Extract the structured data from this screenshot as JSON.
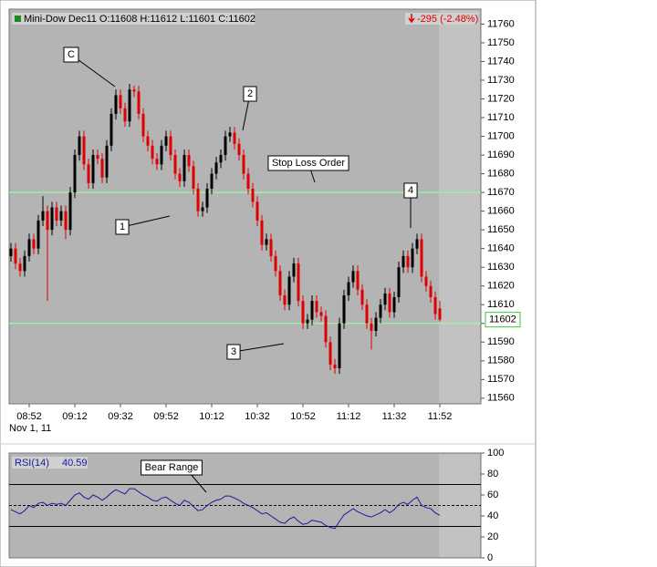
{
  "chart_data": [
    {
      "type": "candlestick",
      "legend": "Mini-Dow Dec11 O:11608 H:11612 L:11601 C:11602",
      "change": "-295 (-2.48%)",
      "date": "Nov 1, 11",
      "categories": [
        null,
        null,
        null,
        null,
        "08:52",
        null,
        null,
        null,
        null,
        null,
        null,
        null,
        null,
        null,
        "09:12",
        null,
        null,
        null,
        null,
        null,
        null,
        null,
        null,
        null,
        "09:32",
        null,
        null,
        null,
        null,
        null,
        null,
        null,
        null,
        null,
        "09:52",
        null,
        null,
        null,
        null,
        null,
        null,
        null,
        null,
        null,
        "10:12",
        null,
        null,
        null,
        null,
        null,
        null,
        null,
        null,
        null,
        "10:32",
        null,
        null,
        null,
        null,
        null,
        null,
        null,
        null,
        null,
        "10:52",
        null,
        null,
        null,
        null,
        null,
        null,
        null,
        null,
        null,
        "11:12",
        null,
        null,
        null,
        null,
        null,
        null,
        null,
        null,
        null,
        "11:32",
        null,
        null,
        null,
        null,
        null,
        null,
        null,
        null,
        null,
        "11:52"
      ],
      "open": [
        11636,
        11640,
        11632,
        11628,
        11636,
        11645,
        11640,
        11655,
        11660,
        11650,
        11662,
        11655,
        11660,
        11650,
        11670,
        11690,
        11700,
        11685,
        11675,
        11690,
        11688,
        11678,
        11695,
        11712,
        11722,
        11715,
        11708,
        11725,
        11724,
        11712,
        11700,
        11695,
        11688,
        11685,
        11695,
        11700,
        11690,
        11680,
        11676,
        11690,
        11684,
        11672,
        11660,
        11662,
        11672,
        11680,
        11686,
        11690,
        11700,
        11702,
        11696,
        11690,
        11680,
        11672,
        11665,
        11655,
        11642,
        11645,
        11636,
        11628,
        11615,
        11610,
        11625,
        11632,
        11612,
        11600,
        11602,
        11612,
        11606,
        11604,
        11590,
        11578,
        11576,
        11600,
        11615,
        11622,
        11628,
        11618,
        11610,
        11600,
        11596,
        11603,
        11610,
        11616,
        11606,
        11614,
        11630,
        11636,
        11630,
        11640,
        11645,
        11625,
        11620,
        11614,
        11608
      ],
      "high": [
        11643,
        11643,
        11635,
        11639,
        11648,
        11648,
        11658,
        11668,
        11663,
        11665,
        11665,
        11663,
        11663,
        11673,
        11693,
        11703,
        11703,
        11688,
        11693,
        11693,
        11691,
        11698,
        11715,
        11725,
        11725,
        11718,
        11728,
        11727,
        11727,
        11715,
        11703,
        11698,
        11691,
        11698,
        11703,
        11703,
        11693,
        11683,
        11693,
        11693,
        11687,
        11675,
        11665,
        11675,
        11683,
        11689,
        11693,
        11703,
        11705,
        11705,
        11699,
        11693,
        11683,
        11675,
        11668,
        11658,
        11648,
        11648,
        11639,
        11631,
        11618,
        11628,
        11635,
        11635,
        11615,
        11605,
        11615,
        11615,
        11609,
        11607,
        11593,
        11581,
        11603,
        11618,
        11625,
        11631,
        11631,
        11621,
        11613,
        11603,
        11606,
        11613,
        11619,
        11619,
        11617,
        11633,
        11639,
        11639,
        11643,
        11648,
        11648,
        11628,
        11623,
        11617,
        11612
      ],
      "low": [
        11633,
        11629,
        11625,
        11625,
        11633,
        11637,
        11637,
        11652,
        11612,
        11647,
        11652,
        11652,
        11645,
        11647,
        11667,
        11687,
        11682,
        11672,
        11672,
        11685,
        11675,
        11675,
        11692,
        11709,
        11712,
        11705,
        11705,
        11721,
        11709,
        11697,
        11692,
        11685,
        11682,
        11682,
        11692,
        11687,
        11677,
        11673,
        11673,
        11681,
        11669,
        11657,
        11657,
        11659,
        11669,
        11677,
        11683,
        11687,
        11697,
        11693,
        11687,
        11677,
        11669,
        11662,
        11652,
        11639,
        11639,
        11633,
        11625,
        11612,
        11607,
        11607,
        11622,
        11609,
        11597,
        11597,
        11599,
        11603,
        11601,
        11587,
        11575,
        11573,
        11573,
        11597,
        11612,
        11619,
        11615,
        11607,
        11597,
        11586,
        11593,
        11600,
        11607,
        11603,
        11603,
        11611,
        11627,
        11627,
        11627,
        11637,
        11622,
        11617,
        11611,
        11602,
        11601
      ],
      "close": [
        11640,
        11632,
        11628,
        11636,
        11645,
        11640,
        11655,
        11660,
        11650,
        11662,
        11655,
        11660,
        11650,
        11670,
        11690,
        11700,
        11685,
        11675,
        11690,
        11688,
        11678,
        11695,
        11712,
        11722,
        11715,
        11708,
        11725,
        11724,
        11712,
        11700,
        11695,
        11688,
        11685,
        11695,
        11700,
        11690,
        11680,
        11676,
        11690,
        11684,
        11672,
        11660,
        11662,
        11672,
        11680,
        11686,
        11690,
        11700,
        11702,
        11696,
        11690,
        11680,
        11672,
        11665,
        11655,
        11642,
        11645,
        11636,
        11628,
        11615,
        11610,
        11625,
        11632,
        11612,
        11600,
        11602,
        11612,
        11606,
        11604,
        11590,
        11578,
        11576,
        11600,
        11615,
        11622,
        11628,
        11618,
        11610,
        11600,
        11596,
        11603,
        11610,
        11616,
        11606,
        11614,
        11630,
        11636,
        11630,
        11640,
        11645,
        11625,
        11620,
        11614,
        11605,
        11602
      ],
      "up_color": "#000000",
      "down_color": "#e00000",
      "ylim": [
        11557,
        11768
      ],
      "yticks": [
        11560,
        11570,
        11580,
        11590,
        11600,
        11610,
        11620,
        11630,
        11640,
        11650,
        11660,
        11670,
        11680,
        11690,
        11700,
        11710,
        11720,
        11730,
        11740,
        11750,
        11760
      ],
      "hlines": [
        11670,
        11600
      ],
      "hline_color": "#9ef09e",
      "annotations": [
        "C",
        "1",
        "2",
        "3",
        "4",
        "Stop Loss Order"
      ]
    },
    {
      "type": "line",
      "legend": "RSI(14)",
      "last": "40.59",
      "color": "#1a1aa0",
      "values": [
        46,
        44,
        42,
        45,
        50,
        48,
        52,
        53,
        50,
        52,
        51,
        52,
        50,
        55,
        60,
        62,
        58,
        56,
        60,
        58,
        55,
        58,
        62,
        65,
        63,
        61,
        66,
        66,
        63,
        60,
        58,
        55,
        54,
        57,
        58,
        55,
        52,
        50,
        55,
        53,
        49,
        45,
        46,
        50,
        53,
        55,
        56,
        59,
        59,
        57,
        55,
        52,
        50,
        48,
        45,
        42,
        43,
        40,
        37,
        34,
        33,
        37,
        39,
        35,
        32,
        33,
        36,
        35,
        34,
        31,
        29,
        28,
        35,
        41,
        44,
        47,
        44,
        42,
        40,
        39,
        41,
        43,
        46,
        43,
        46,
        51,
        53,
        51,
        55,
        58,
        50,
        48,
        47,
        43,
        40.59
      ],
      "ylim": [
        0,
        100
      ],
      "yticks": [
        0,
        20,
        40,
        60,
        80,
        100
      ],
      "levels": [
        70,
        50,
        30
      ],
      "annotations": [
        "Bear Range"
      ]
    }
  ]
}
